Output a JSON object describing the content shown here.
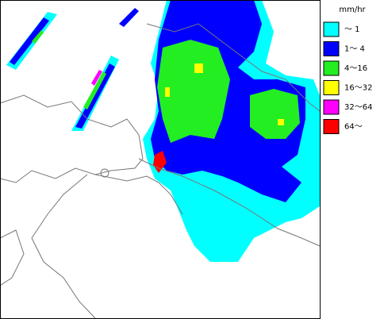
{
  "legend": {
    "title": "mm/hr",
    "items": [
      {
        "label": "〜 1",
        "color": "#00ffff"
      },
      {
        "label": "1〜 4",
        "color": "#0000ff"
      },
      {
        "label": "4〜16",
        "color": "#22ee22"
      },
      {
        "label": "16〜32",
        "color": "#ffff00"
      },
      {
        "label": "32〜64",
        "color": "#ff00ff"
      },
      {
        "label": "64〜",
        "color": "#ff0000"
      }
    ]
  }
}
